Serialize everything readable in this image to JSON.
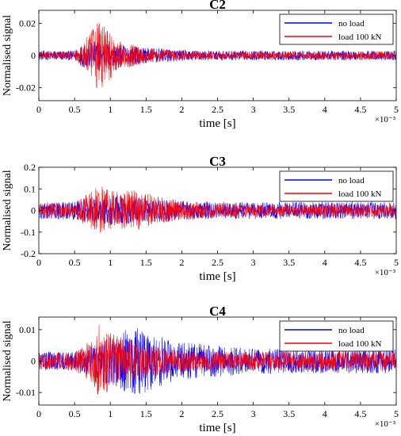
{
  "figure": {
    "panels": [
      {
        "title": "C2",
        "xlabel": "time [s]",
        "ylabel": "Normalised signal",
        "x_exponent": "×10⁻³",
        "yticks": [
          "0.02",
          "0",
          "-0.02"
        ],
        "xticks": [
          "0",
          "0.5",
          "1",
          "1.5",
          "2",
          "2.5",
          "3",
          "3.5",
          "4",
          "4.5",
          "5"
        ],
        "legend": [
          "no load",
          "load 100 kN"
        ]
      },
      {
        "title": "C3",
        "xlabel": "time [s]",
        "ylabel": "Normalised signal",
        "x_exponent": "×10⁻³",
        "yticks": [
          "0.2",
          "0.1",
          "0",
          "-0.1",
          "-0.2"
        ],
        "xticks": [
          "0",
          "0.5",
          "1",
          "1.5",
          "2",
          "2.5",
          "3",
          "3.5",
          "4",
          "4.5",
          "5"
        ],
        "legend": [
          "no load",
          "load 100 kN"
        ]
      },
      {
        "title": "C4",
        "xlabel": "time [s]",
        "ylabel": "Normalised signal",
        "x_exponent": "×10⁻³",
        "yticks": [
          "0.01",
          "0",
          "-0.01"
        ],
        "xticks": [
          "0",
          "0.5",
          "1",
          "1.5",
          "2",
          "2.5",
          "3",
          "3.5",
          "4",
          "4.5",
          "5"
        ],
        "legend": [
          "no load",
          "load 100 kN"
        ]
      }
    ]
  },
  "chart_data": [
    {
      "type": "line",
      "title": "C2",
      "xlabel": "time [s]",
      "ylabel": "Normalised signal",
      "x_scale_multiplier": 0.001,
      "xlim": [
        0,
        5
      ],
      "ylim": [
        -0.028,
        0.028
      ],
      "legend_position": "top-right",
      "grid": false,
      "series": [
        {
          "name": "no load",
          "color": "#0000ff",
          "envelope": {
            "t": [
              0,
              0.5,
              0.6,
              0.75,
              0.85,
              0.95,
              1.1,
              1.3,
              1.5,
              2.0,
              2.5,
              3.0,
              3.5,
              4.0,
              4.5,
              5.0
            ],
            "amplitude": [
              0.003,
              0.003,
              0.007,
              0.009,
              0.009,
              0.008,
              0.007,
              0.006,
              0.005,
              0.0035,
              0.003,
              0.003,
              0.003,
              0.003,
              0.003,
              0.003
            ]
          }
        },
        {
          "name": "load 100 kN",
          "color": "#ff0000",
          "envelope": {
            "t": [
              0,
              0.5,
              0.6,
              0.75,
              0.85,
              0.95,
              1.1,
              1.3,
              1.5,
              2.0,
              2.5,
              3.0,
              3.5,
              4.0,
              4.5,
              5.0
            ],
            "amplitude": [
              0.0025,
              0.0025,
              0.008,
              0.016,
              0.024,
              0.018,
              0.009,
              0.007,
              0.005,
              0.003,
              0.0025,
              0.0025,
              0.0025,
              0.0025,
              0.0025,
              0.0025
            ]
          }
        }
      ]
    },
    {
      "type": "line",
      "title": "C3",
      "xlabel": "time [s]",
      "ylabel": "Normalised signal",
      "x_scale_multiplier": 0.001,
      "xlim": [
        0,
        5
      ],
      "ylim": [
        -0.2,
        0.2
      ],
      "legend_position": "top-right",
      "grid": false,
      "series": [
        {
          "name": "no load",
          "color": "#0000ff",
          "envelope": {
            "t": [
              0,
              0.5,
              0.7,
              0.85,
              1.0,
              1.2,
              1.4,
              1.6,
              2.0,
              2.5,
              3.0,
              3.5,
              4.0,
              4.5,
              5.0
            ],
            "amplitude": [
              0.04,
              0.045,
              0.06,
              0.07,
              0.07,
              0.065,
              0.06,
              0.055,
              0.045,
              0.04,
              0.04,
              0.04,
              0.04,
              0.04,
              0.04
            ]
          }
        },
        {
          "name": "load 100 kN",
          "color": "#ff0000",
          "envelope": {
            "t": [
              0,
              0.5,
              0.7,
              0.85,
              1.0,
              1.2,
              1.4,
              1.6,
              2.0,
              2.5,
              3.0,
              3.5,
              4.0,
              4.5,
              5.0
            ],
            "amplitude": [
              0.035,
              0.04,
              0.08,
              0.12,
              0.09,
              0.09,
              0.1,
              0.07,
              0.045,
              0.035,
              0.03,
              0.03,
              0.03,
              0.03,
              0.03
            ]
          }
        }
      ]
    },
    {
      "type": "line",
      "title": "C4",
      "xlabel": "time [s]",
      "ylabel": "Normalised signal",
      "x_scale_multiplier": 0.001,
      "xlim": [
        0,
        5
      ],
      "ylim": [
        -0.014,
        0.014
      ],
      "legend_position": "top-right",
      "grid": false,
      "series": [
        {
          "name": "no load",
          "color": "#0000ff",
          "envelope": {
            "t": [
              0,
              0.5,
              0.8,
              1.0,
              1.2,
              1.4,
              1.6,
              1.8,
              2.0,
              2.5,
              3.0,
              3.5,
              4.0,
              4.5,
              5.0
            ],
            "amplitude": [
              0.003,
              0.003,
              0.006,
              0.008,
              0.01,
              0.011,
              0.009,
              0.007,
              0.006,
              0.005,
              0.004,
              0.004,
              0.004,
              0.004,
              0.004
            ]
          }
        },
        {
          "name": "load 100 kN",
          "color": "#ff0000",
          "envelope": {
            "t": [
              0,
              0.5,
              0.75,
              0.85,
              1.0,
              1.2,
              1.5,
              1.8,
              2.0,
              2.5,
              3.0,
              3.5,
              4.0,
              4.5,
              5.0
            ],
            "amplitude": [
              0.0025,
              0.003,
              0.007,
              0.012,
              0.009,
              0.007,
              0.006,
              0.004,
              0.0035,
              0.003,
              0.003,
              0.003,
              0.003,
              0.003,
              0.003
            ]
          }
        }
      ]
    }
  ]
}
